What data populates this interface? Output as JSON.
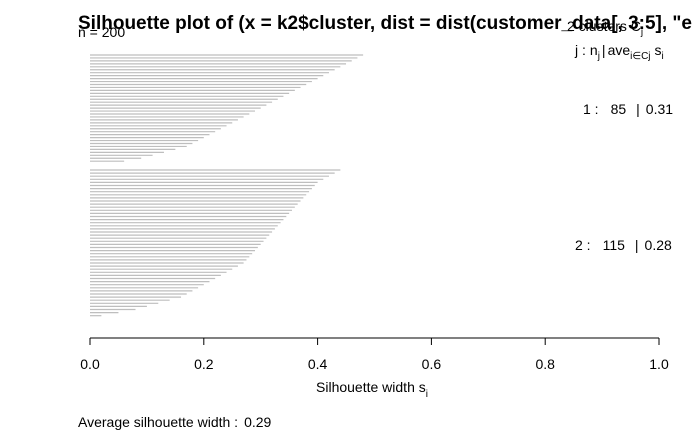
{
  "chart_data": {
    "type": "bar",
    "title": "Silhouette plot of (x = k2$cluster, dist = dist(customer_data[, 3:5], \"e",
    "n_label": "n = 200",
    "clusters_label": "2 clusters C",
    "clusters_label_sub": "j",
    "legend_header": {
      "j": "j :",
      "n": "n",
      "n_sub": "j",
      "sep": "|",
      "ave": "ave",
      "ave_sub": "i∈Cj",
      "s": "s",
      "s_sub": "i"
    },
    "clusters": [
      {
        "id": 1,
        "label": "1 :",
        "n": "85",
        "sep": "|",
        "avg": "0.31",
        "values": [
          0.48,
          0.47,
          0.46,
          0.45,
          0.44,
          0.43,
          0.42,
          0.41,
          0.4,
          0.39,
          0.38,
          0.37,
          0.36,
          0.35,
          0.34,
          0.33,
          0.32,
          0.31,
          0.3,
          0.29,
          0.28,
          0.27,
          0.26,
          0.25,
          0.24,
          0.23,
          0.22,
          0.21,
          0.2,
          0.19,
          0.18,
          0.17,
          0.15,
          0.13,
          0.11,
          0.09,
          0.06
        ]
      },
      {
        "id": 2,
        "label": "2 :",
        "n": "115",
        "sep": "|",
        "avg": "0.28",
        "values": [
          0.44,
          0.43,
          0.42,
          0.41,
          0.4,
          0.395,
          0.39,
          0.385,
          0.38,
          0.375,
          0.37,
          0.365,
          0.36,
          0.355,
          0.35,
          0.345,
          0.34,
          0.335,
          0.33,
          0.325,
          0.32,
          0.315,
          0.31,
          0.305,
          0.3,
          0.295,
          0.29,
          0.285,
          0.28,
          0.275,
          0.27,
          0.26,
          0.25,
          0.24,
          0.23,
          0.22,
          0.21,
          0.2,
          0.19,
          0.18,
          0.17,
          0.16,
          0.14,
          0.12,
          0.1,
          0.08,
          0.05,
          0.02
        ]
      }
    ],
    "xlim": [
      0,
      1
    ],
    "x_ticks": [
      "0.0",
      "0.2",
      "0.4",
      "0.6",
      "0.8",
      "1.0"
    ],
    "xlabel": "Silhouette width s",
    "xlabel_sub": "i",
    "footer_label": "Average silhouette width :",
    "footer_value": "0.29",
    "bar_color": "#bebebe"
  }
}
